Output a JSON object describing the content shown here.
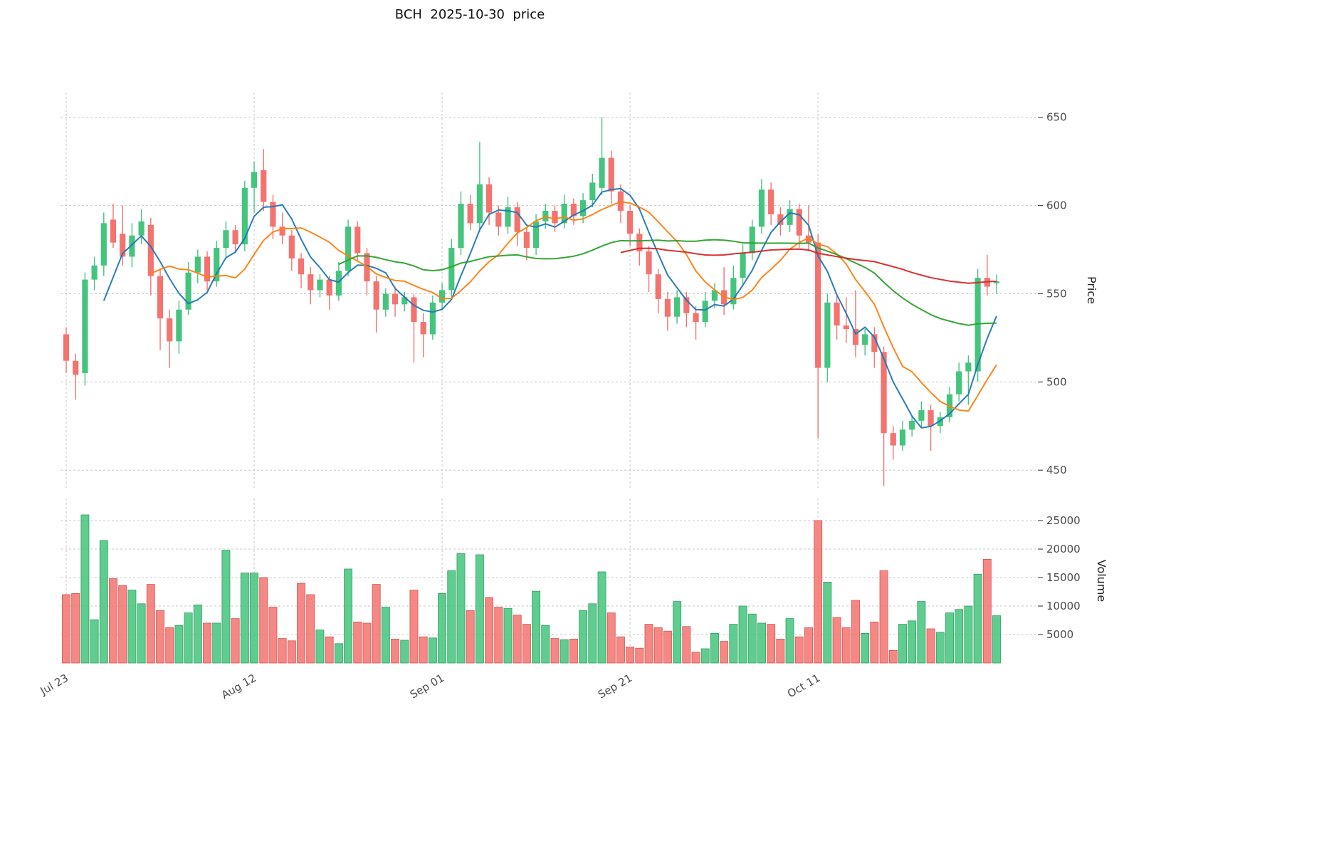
{
  "title": "BCH  2025-10-30  price",
  "chart_data": {
    "type": "candlestick",
    "title": "BCH  2025-10-30  price",
    "legend": "none",
    "grid": "dashed",
    "grid_color": "#c9c9c9",
    "x_ticks": [
      {
        "index": 0,
        "label": "Jul 23"
      },
      {
        "index": 20,
        "label": "Aug 12"
      },
      {
        "index": 40,
        "label": "Sep 01"
      },
      {
        "index": 60,
        "label": "Sep 21"
      },
      {
        "index": 80,
        "label": "Oct 11"
      }
    ],
    "price_axis": {
      "label": "Price",
      "ticks": [
        450,
        500,
        550,
        600,
        650
      ],
      "domain": [
        440,
        664
      ]
    },
    "volume_axis": {
      "label": "Volume",
      "ticks": [
        5000,
        10000,
        15000,
        20000,
        25000
      ],
      "domain": [
        0,
        28875
      ]
    },
    "moving_average_windows": [
      5,
      10,
      30,
      60
    ],
    "ma_colors": [
      "#1f77b4",
      "#ff7f0e",
      "#2ca02c",
      "#d62728"
    ],
    "candle_colors": {
      "up": "#44c47d",
      "up_edge": "#2ea05f",
      "down": "#f3736f",
      "down_edge": "#d4544f"
    },
    "ohlcv_columns": [
      "open",
      "high",
      "low",
      "close",
      "volume"
    ],
    "ohlcv": [
      [
        527,
        531,
        505,
        512,
        12000
      ],
      [
        512,
        516,
        490,
        504,
        12200
      ],
      [
        505,
        562,
        498,
        558,
        26000
      ],
      [
        558,
        571,
        552,
        566,
        7600
      ],
      [
        566,
        596,
        560,
        590,
        21500
      ],
      [
        592,
        601,
        576,
        579,
        14800
      ],
      [
        584,
        600,
        566,
        571,
        13600
      ],
      [
        571,
        590,
        565,
        583,
        12800
      ],
      [
        583,
        598,
        578,
        591,
        10400
      ],
      [
        589,
        593,
        549,
        560,
        13800
      ],
      [
        560,
        564,
        518,
        536,
        9200
      ],
      [
        536,
        541,
        508,
        523,
        6200
      ],
      [
        523,
        546,
        516,
        541,
        6600
      ],
      [
        541,
        568,
        538,
        562,
        8800
      ],
      [
        562,
        575,
        556,
        571,
        10200
      ],
      [
        571,
        574,
        552,
        557,
        7000
      ],
      [
        557,
        580,
        554,
        576,
        7000
      ],
      [
        576,
        591,
        571,
        586,
        19800
      ],
      [
        586,
        589,
        573,
        578,
        7800
      ],
      [
        578,
        614,
        574,
        610,
        15800
      ],
      [
        610,
        625,
        596,
        619,
        15800
      ],
      [
        620,
        632,
        597,
        602,
        15000
      ],
      [
        602,
        606,
        581,
        588,
        9800
      ],
      [
        588,
        596,
        578,
        583,
        4300
      ],
      [
        583,
        586,
        563,
        570,
        3900
      ],
      [
        570,
        573,
        553,
        561,
        14000
      ],
      [
        561,
        565,
        544,
        552,
        12000
      ],
      [
        552,
        561,
        548,
        558,
        5800
      ],
      [
        558,
        560,
        541,
        549,
        4600
      ],
      [
        549,
        568,
        546,
        563,
        3400
      ],
      [
        563,
        592,
        560,
        588,
        16500
      ],
      [
        588,
        591,
        569,
        573,
        7200
      ],
      [
        573,
        576,
        549,
        557,
        7000
      ],
      [
        557,
        560,
        528,
        541,
        13800
      ],
      [
        541,
        553,
        537,
        550,
        9800
      ],
      [
        550,
        554,
        537,
        544,
        4200
      ],
      [
        544,
        551,
        540,
        548,
        4000
      ],
      [
        548,
        550,
        511,
        534,
        12800
      ],
      [
        534,
        539,
        514,
        527,
        4600
      ],
      [
        527,
        549,
        524,
        545,
        4400
      ],
      [
        545,
        556,
        541,
        552,
        12200
      ],
      [
        552,
        581,
        548,
        576,
        16200
      ],
      [
        576,
        608,
        572,
        601,
        19200
      ],
      [
        601,
        606,
        586,
        590,
        9200
      ],
      [
        590,
        636,
        585,
        612,
        19000
      ],
      [
        612,
        616,
        589,
        596,
        11500
      ],
      [
        596,
        600,
        583,
        588,
        9800
      ],
      [
        588,
        605,
        584,
        599,
        9600
      ],
      [
        599,
        602,
        577,
        585,
        8400
      ],
      [
        585,
        588,
        569,
        576,
        6800
      ],
      [
        576,
        595,
        572,
        591,
        12600
      ],
      [
        591,
        601,
        587,
        597,
        6600
      ],
      [
        597,
        600,
        585,
        590,
        4300
      ],
      [
        590,
        606,
        587,
        601,
        4100
      ],
      [
        601,
        604,
        589,
        594,
        4200
      ],
      [
        594,
        607,
        590,
        603,
        9200
      ],
      [
        603,
        618,
        599,
        613,
        10400
      ],
      [
        610,
        650,
        606,
        627,
        16000
      ],
      [
        627,
        631,
        601,
        608,
        8800
      ],
      [
        608,
        612,
        590,
        597,
        4600
      ],
      [
        597,
        600,
        577,
        584,
        2800
      ],
      [
        584,
        587,
        566,
        574,
        2600
      ],
      [
        574,
        577,
        551,
        561,
        6800
      ],
      [
        561,
        564,
        539,
        547,
        6200
      ],
      [
        547,
        551,
        529,
        537,
        5600
      ],
      [
        537,
        552,
        533,
        548,
        10800
      ],
      [
        548,
        551,
        531,
        539,
        6400
      ],
      [
        539,
        543,
        524,
        534,
        1900
      ],
      [
        534,
        551,
        531,
        546,
        2500
      ],
      [
        546,
        556,
        542,
        552,
        5200
      ],
      [
        552,
        565,
        538,
        544,
        3800
      ],
      [
        544,
        566,
        541,
        559,
        6800
      ],
      [
        559,
        578,
        555,
        573,
        10000
      ],
      [
        573,
        592,
        569,
        588,
        8600
      ],
      [
        588,
        615,
        584,
        609,
        7000
      ],
      [
        609,
        613,
        589,
        595,
        6800
      ],
      [
        595,
        599,
        583,
        589,
        4200
      ],
      [
        589,
        603,
        585,
        598,
        7800
      ],
      [
        598,
        601,
        576,
        583,
        4600
      ],
      [
        583,
        600,
        574,
        579,
        6200
      ],
      [
        579,
        584,
        468,
        508,
        25000
      ],
      [
        508,
        550,
        500,
        545,
        14200
      ],
      [
        545,
        549,
        524,
        532,
        8000
      ],
      [
        532,
        548,
        522,
        530,
        6200
      ],
      [
        530,
        552,
        514,
        521,
        11000
      ],
      [
        521,
        530,
        515,
        527,
        5200
      ],
      [
        527,
        531,
        508,
        517,
        7200
      ],
      [
        517,
        520,
        441,
        471,
        16200
      ],
      [
        471,
        475,
        456,
        464,
        2200
      ],
      [
        464,
        478,
        461,
        473,
        6800
      ],
      [
        473,
        481,
        469,
        478,
        7400
      ],
      [
        478,
        489,
        474,
        484,
        10800
      ],
      [
        484,
        487,
        461,
        475,
        6000
      ],
      [
        475,
        483,
        471,
        480,
        5400
      ],
      [
        480,
        497,
        477,
        493,
        8800
      ],
      [
        493,
        511,
        489,
        506,
        9400
      ],
      [
        506,
        515,
        487,
        511,
        10000
      ],
      [
        506,
        564,
        500,
        559,
        15600
      ],
      [
        559,
        572,
        549,
        554,
        18200
      ],
      [
        556,
        561,
        550,
        557,
        8300
      ]
    ]
  }
}
